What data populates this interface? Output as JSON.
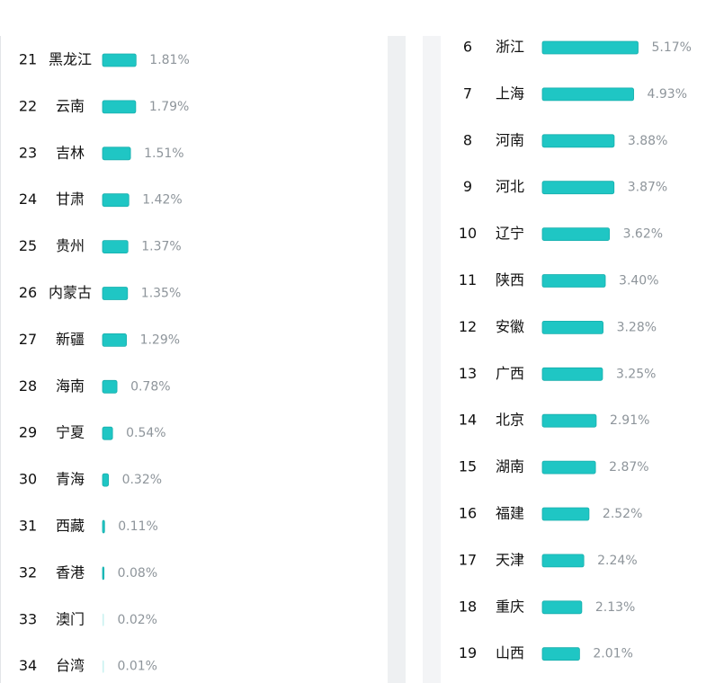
{
  "chart_data": [
    {
      "type": "bar",
      "orientation": "horizontal",
      "color": "#1fc6c4",
      "ranks": [
        21,
        22,
        23,
        24,
        25,
        26,
        27,
        28,
        29,
        30,
        31,
        32,
        33,
        34
      ],
      "categories": [
        "黑龙江",
        "云南",
        "吉林",
        "甘肃",
        "贵州",
        "内蒙古",
        "新疆",
        "海南",
        "宁夏",
        "青海",
        "西藏",
        "香港",
        "澳门",
        "台湾"
      ],
      "values": [
        1.81,
        1.79,
        1.51,
        1.42,
        1.37,
        1.35,
        1.29,
        0.78,
        0.54,
        0.32,
        0.11,
        0.08,
        0.02,
        0.01
      ],
      "value_labels": [
        "1.81%",
        "1.79%",
        "1.51%",
        "1.42%",
        "1.37%",
        "1.35%",
        "1.29%",
        "0.78%",
        "0.54%",
        "0.32%",
        "0.11%",
        "0.08%",
        "0.02%",
        "0.01%"
      ]
    },
    {
      "type": "bar",
      "orientation": "horizontal",
      "color": "#1fc6c4",
      "ranks": [
        6,
        7,
        8,
        9,
        10,
        11,
        12,
        13,
        14,
        15,
        16,
        17,
        18,
        19
      ],
      "categories": [
        "浙江",
        "上海",
        "河南",
        "河北",
        "辽宁",
        "陕西",
        "安徽",
        "广西",
        "北京",
        "湖南",
        "福建",
        "天津",
        "重庆",
        "山西"
      ],
      "values": [
        5.17,
        4.93,
        3.88,
        3.87,
        3.62,
        3.4,
        3.28,
        3.25,
        2.91,
        2.87,
        2.52,
        2.24,
        2.13,
        2.01
      ],
      "value_labels": [
        "5.17%",
        "4.93%",
        "3.88%",
        "3.87%",
        "3.62%",
        "3.40%",
        "3.28%",
        "3.25%",
        "2.91%",
        "2.87%",
        "2.52%",
        "2.24%",
        "2.13%",
        "2.01%"
      ]
    }
  ]
}
